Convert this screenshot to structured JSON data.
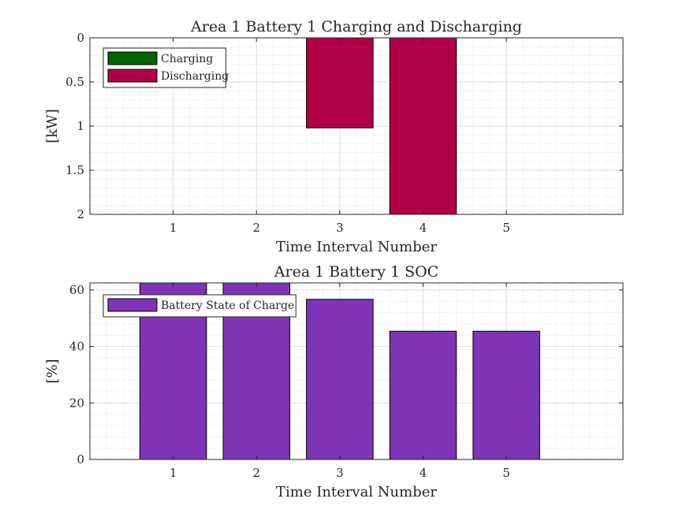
{
  "chart_data": [
    {
      "type": "bar",
      "title": "Area 1 Battery 1 Charging and Discharging",
      "xlabel": "Time Interval Number",
      "ylabel": "[kW]",
      "y_direction": "reversed",
      "xlim": [
        0,
        6.4
      ],
      "ylim": [
        0,
        2
      ],
      "categories": [
        "1",
        "2",
        "3",
        "4",
        "5"
      ],
      "x": [
        1,
        2,
        3,
        4,
        5
      ],
      "yticks": [
        "0",
        "0.5",
        "1",
        "1.5",
        "2"
      ],
      "ytick_values": [
        0,
        0.5,
        1,
        1.5,
        2
      ],
      "grid": true,
      "minor_grid": true,
      "legend_position": "top-left",
      "series": [
        {
          "name": "Charging",
          "color": "#006400",
          "values": [
            0,
            0,
            0,
            0,
            0
          ]
        },
        {
          "name": "Discharging",
          "color": "#b00048",
          "values": [
            0,
            0,
            1.02,
            2,
            0
          ]
        }
      ]
    },
    {
      "type": "bar",
      "title": "Area 1 Battery 1 SOC",
      "xlabel": "Time Interval Number",
      "ylabel": "[%]",
      "xlim": [
        0,
        6.4
      ],
      "ylim": [
        0,
        62.5
      ],
      "categories": [
        "1",
        "2",
        "3",
        "4",
        "5"
      ],
      "x": [
        1,
        2,
        3,
        4,
        5
      ],
      "yticks": [
        "0",
        "20",
        "40",
        "60"
      ],
      "ytick_values": [
        0,
        20,
        40,
        60
      ],
      "grid": true,
      "minor_grid": true,
      "legend_position": "top-left",
      "series": [
        {
          "name": "Battery State of Charge",
          "color": "#7e34b4",
          "values": [
            62.5,
            62.5,
            56.7,
            45.4,
            45.4
          ]
        }
      ]
    }
  ]
}
